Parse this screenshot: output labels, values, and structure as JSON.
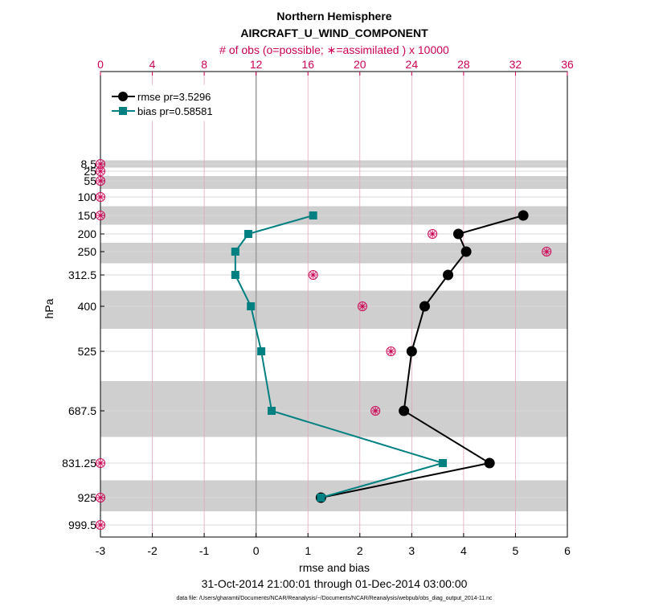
{
  "chart_data": {
    "type": "line",
    "title": "Northern Hemisphere",
    "subtitle": "AIRCRAFT_U_WIND_COMPONENT",
    "top_axis_label": "# of obs (o=possible; ∗=assimilated ) x 10000",
    "xlabel": "rmse and bias",
    "ylabel": "hPa",
    "date_range": "31-Oct-2014 21:00:01 through 01-Dec-2014 03:00:00",
    "footnote": "data file: /Users/gharamti/Documents/NCAR/Reanalysis/~/Documents/NCAR/Reanalysis/webpub/obs_diag_output_2014-11.nc",
    "xlim": [
      -3,
      6
    ],
    "x_ticks": [
      "-3",
      "-2",
      "-1",
      "0",
      "1",
      "2",
      "3",
      "4",
      "5",
      "6"
    ],
    "top_xlim": [
      0,
      36
    ],
    "top_ticks": [
      "0",
      "4",
      "8",
      "12",
      "16",
      "20",
      "24",
      "28",
      "32",
      "36"
    ],
    "pressure_levels": [
      8.5,
      25,
      55,
      100,
      150,
      200,
      250,
      312.5,
      400,
      525,
      687.5,
      831.25,
      925,
      999.5
    ],
    "y_tick_labels": [
      "8.5",
      "25",
      "55",
      "100",
      "150",
      "200",
      "250",
      "312.5",
      "400",
      "525",
      "687.5",
      "831.25",
      "925",
      "999.5"
    ],
    "series": [
      {
        "name": "rmse pr=3.5296",
        "color": "#000000",
        "levels": [
          150,
          200,
          250,
          312.5,
          400,
          525,
          687.5,
          831.25,
          925
        ],
        "values": [
          5.15,
          3.9,
          4.05,
          3.7,
          3.25,
          3.0,
          2.85,
          4.5,
          1.25
        ]
      },
      {
        "name": "bias pr=0.58581",
        "color": "#008080",
        "levels": [
          150,
          200,
          250,
          312.5,
          400,
          525,
          687.5,
          831.25,
          925
        ],
        "values": [
          1.1,
          -0.15,
          -0.4,
          -0.4,
          -0.1,
          0.1,
          0.3,
          3.6,
          1.25
        ]
      }
    ],
    "obs_counts": {
      "color": "#cc0055",
      "levels": [
        8.5,
        25,
        55,
        100,
        150,
        200,
        250,
        312.5,
        400,
        525,
        687.5,
        831.25,
        925,
        999.5
      ],
      "possible": [
        0,
        0,
        0,
        0,
        0,
        25.6,
        34.4,
        16.4,
        20.2,
        22.4,
        21.2,
        0,
        0,
        0
      ],
      "assimilated": [
        0,
        0,
        0,
        0,
        0,
        25.6,
        34.4,
        16.4,
        20.2,
        22.4,
        21.2,
        0,
        0,
        0
      ]
    },
    "legend_position": "top-left",
    "grid": true
  }
}
